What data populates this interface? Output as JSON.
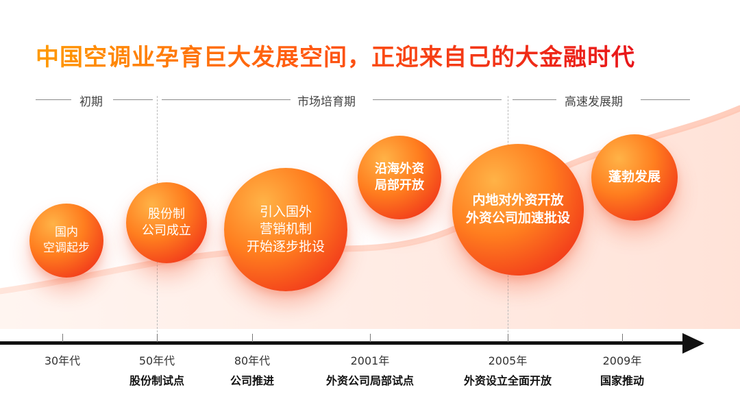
{
  "title": "中国空调业孕育巨大发展空间，正迎来自己的大金融时代",
  "phases": [
    {
      "label": "初期"
    },
    {
      "label": "市场培育期"
    },
    {
      "label": "高速发展期"
    }
  ],
  "milestones": [
    {
      "year": "30年代",
      "event": ""
    },
    {
      "year": "50年代",
      "event": "股份制试点"
    },
    {
      "year": "80年代",
      "event": "公司推进"
    },
    {
      "year": "2001年",
      "event": "外资公司局部试点"
    },
    {
      "year": "2005年",
      "event": "外资设立全面开放"
    },
    {
      "year": "2009年",
      "event": "国家推动"
    }
  ],
  "bubbles": [
    {
      "text": "国内\n空调起步"
    },
    {
      "text": "股份制\n公司成立"
    },
    {
      "text": "引入国外\n营销机制\n开始逐步批设"
    },
    {
      "text": "沿海外资\n局部开放"
    },
    {
      "text": "内地对外资开放\n外资公司加速批设"
    },
    {
      "text": "蓬勃发展"
    }
  ],
  "colors": {
    "accent_start": "#ff9a00",
    "accent_end": "#e8161a",
    "axis": "#111111"
  }
}
